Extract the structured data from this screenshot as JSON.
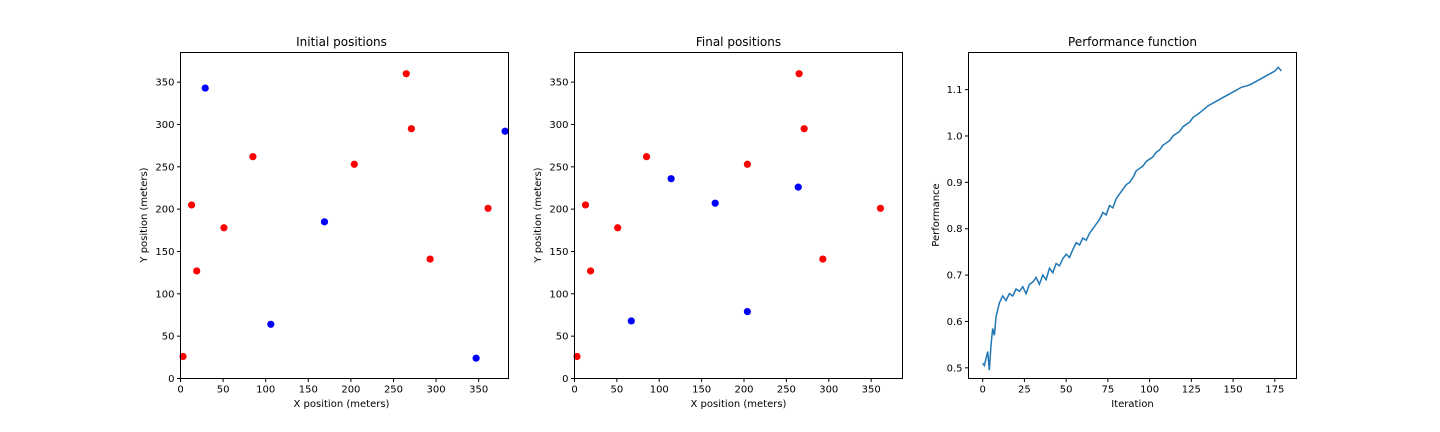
{
  "colors": {
    "red": "#ff0000",
    "blue": "#0000ff",
    "line": "#1f77b4"
  },
  "chart_data": [
    {
      "type": "scatter",
      "title": "Initial positions",
      "xlabel": "X position (meters)",
      "ylabel": "Y position (meters)",
      "xlim": [
        0,
        385
      ],
      "ylim": [
        0,
        385
      ],
      "xticks": [
        0,
        50,
        100,
        150,
        200,
        250,
        300,
        350
      ],
      "yticks": [
        0,
        50,
        100,
        150,
        200,
        250,
        300,
        350
      ],
      "grid": false,
      "series": [
        {
          "color": "red",
          "points": [
            [
              3,
              26
            ],
            [
              13,
              205
            ],
            [
              19,
              127
            ],
            [
              51,
              178
            ],
            [
              85,
              262
            ],
            [
              204,
              253
            ],
            [
              265,
              360
            ],
            [
              271,
              295
            ],
            [
              293,
              141
            ],
            [
              361,
              201
            ]
          ]
        },
        {
          "color": "blue",
          "points": [
            [
              29,
              343
            ],
            [
              106,
              64
            ],
            [
              169,
              185
            ],
            [
              347,
              24
            ],
            [
              381,
              292
            ]
          ]
        }
      ]
    },
    {
      "type": "scatter",
      "title": "Final positions",
      "xlabel": "X position (meters)",
      "ylabel": "Y position (meters)",
      "xlim": [
        0,
        387
      ],
      "ylim": [
        0,
        385
      ],
      "xticks": [
        0,
        50,
        100,
        150,
        200,
        250,
        300,
        350
      ],
      "yticks": [
        0,
        50,
        100,
        150,
        200,
        250,
        300,
        350
      ],
      "grid": false,
      "series": [
        {
          "color": "red",
          "points": [
            [
              3,
              26
            ],
            [
              13,
              205
            ],
            [
              19,
              127
            ],
            [
              51,
              178
            ],
            [
              85,
              262
            ],
            [
              204,
              253
            ],
            [
              265,
              360
            ],
            [
              271,
              295
            ],
            [
              293,
              141
            ],
            [
              361,
              201
            ]
          ]
        },
        {
          "color": "blue",
          "points": [
            [
              67,
              68
            ],
            [
              114,
              236
            ],
            [
              166,
              207
            ],
            [
              204,
              79
            ],
            [
              264,
              226
            ]
          ]
        }
      ]
    },
    {
      "type": "line",
      "title": "Performance function",
      "xlabel": "Iteration",
      "ylabel": "Performance",
      "xlim": [
        -8.5,
        188
      ],
      "ylim": [
        0.477,
        1.18
      ],
      "xticks": [
        0,
        25,
        50,
        75,
        100,
        125,
        150,
        175
      ],
      "yticks": [
        0.5,
        0.6,
        0.7,
        0.8,
        0.9,
        1.0,
        1.1
      ],
      "ytick_labels": [
        "0.5",
        "0.6",
        "0.7",
        "0.8",
        "0.9",
        "1.0",
        "1.1"
      ],
      "grid": false,
      "series": [
        {
          "color": "line",
          "x": [
            0,
            1,
            2,
            3,
            4,
            5,
            6,
            7,
            8,
            9,
            10,
            12,
            14,
            16,
            18,
            20,
            22,
            24,
            26,
            28,
            30,
            32,
            34,
            36,
            38,
            40,
            42,
            44,
            46,
            48,
            50,
            52,
            54,
            56,
            58,
            60,
            62,
            64,
            66,
            68,
            70,
            72,
            74,
            76,
            78,
            80,
            82,
            84,
            86,
            88,
            90,
            92,
            94,
            96,
            98,
            100,
            102,
            104,
            106,
            108,
            110,
            112,
            114,
            116,
            118,
            120,
            122,
            124,
            126,
            128,
            130,
            135,
            140,
            145,
            150,
            155,
            160,
            165,
            170,
            175,
            177,
            179
          ],
          "y": [
            0.51,
            0.505,
            0.52,
            0.535,
            0.495,
            0.55,
            0.585,
            0.57,
            0.61,
            0.625,
            0.64,
            0.655,
            0.645,
            0.66,
            0.655,
            0.67,
            0.665,
            0.675,
            0.66,
            0.68,
            0.685,
            0.695,
            0.68,
            0.7,
            0.69,
            0.715,
            0.705,
            0.725,
            0.72,
            0.735,
            0.745,
            0.738,
            0.755,
            0.77,
            0.765,
            0.78,
            0.775,
            0.79,
            0.8,
            0.81,
            0.82,
            0.835,
            0.83,
            0.85,
            0.845,
            0.865,
            0.875,
            0.885,
            0.895,
            0.9,
            0.91,
            0.925,
            0.93,
            0.935,
            0.945,
            0.95,
            0.955,
            0.965,
            0.97,
            0.98,
            0.985,
            0.99,
            1.0,
            1.005,
            1.01,
            1.02,
            1.025,
            1.03,
            1.04,
            1.045,
            1.05,
            1.065,
            1.075,
            1.085,
            1.095,
            1.105,
            1.11,
            1.12,
            1.13,
            1.14,
            1.148,
            1.14
          ]
        }
      ]
    }
  ]
}
